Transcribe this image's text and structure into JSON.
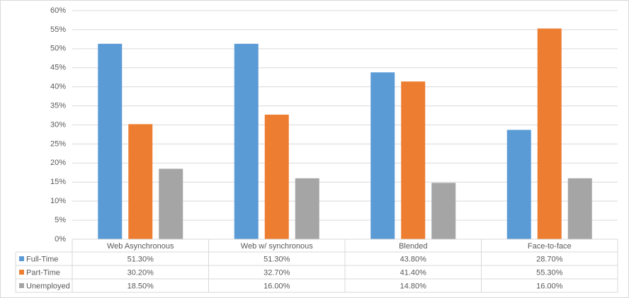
{
  "chart_data": {
    "type": "bar",
    "categories": [
      "Web Asynchronous",
      "Web w/ synchronous",
      "Blended",
      "Face-to-face"
    ],
    "series": [
      {
        "name": "Full-Time",
        "color": "#5b9bd5",
        "values": [
          51.3,
          51.3,
          43.8,
          28.7
        ],
        "value_labels": [
          "51.30%",
          "51.30%",
          "43.80%",
          "28.70%"
        ]
      },
      {
        "name": "Part-Time",
        "color": "#ed7d31",
        "values": [
          30.2,
          32.7,
          41.4,
          55.3
        ],
        "value_labels": [
          "30.20%",
          "32.70%",
          "41.40%",
          "55.30%"
        ]
      },
      {
        "name": "Unemployed",
        "color": "#a5a5a5",
        "values": [
          18.5,
          16.0,
          14.8,
          16.0
        ],
        "value_labels": [
          "18.50%",
          "16.00%",
          "14.80%",
          "16.00%"
        ]
      }
    ],
    "ylim": [
      0,
      60
    ],
    "yticks": [
      {
        "value": 0,
        "label": "0%"
      },
      {
        "value": 5,
        "label": "5%"
      },
      {
        "value": 10,
        "label": "10%"
      },
      {
        "value": 15,
        "label": "15%"
      },
      {
        "value": 20,
        "label": "20%"
      },
      {
        "value": 25,
        "label": "25%"
      },
      {
        "value": 30,
        "label": "30%"
      },
      {
        "value": 35,
        "label": "35%"
      },
      {
        "value": 40,
        "label": "40%"
      },
      {
        "value": 45,
        "label": "45%"
      },
      {
        "value": 50,
        "label": "50%"
      },
      {
        "value": 55,
        "label": "55%"
      },
      {
        "value": 60,
        "label": "60%"
      }
    ],
    "grid": true,
    "legend": "table"
  }
}
